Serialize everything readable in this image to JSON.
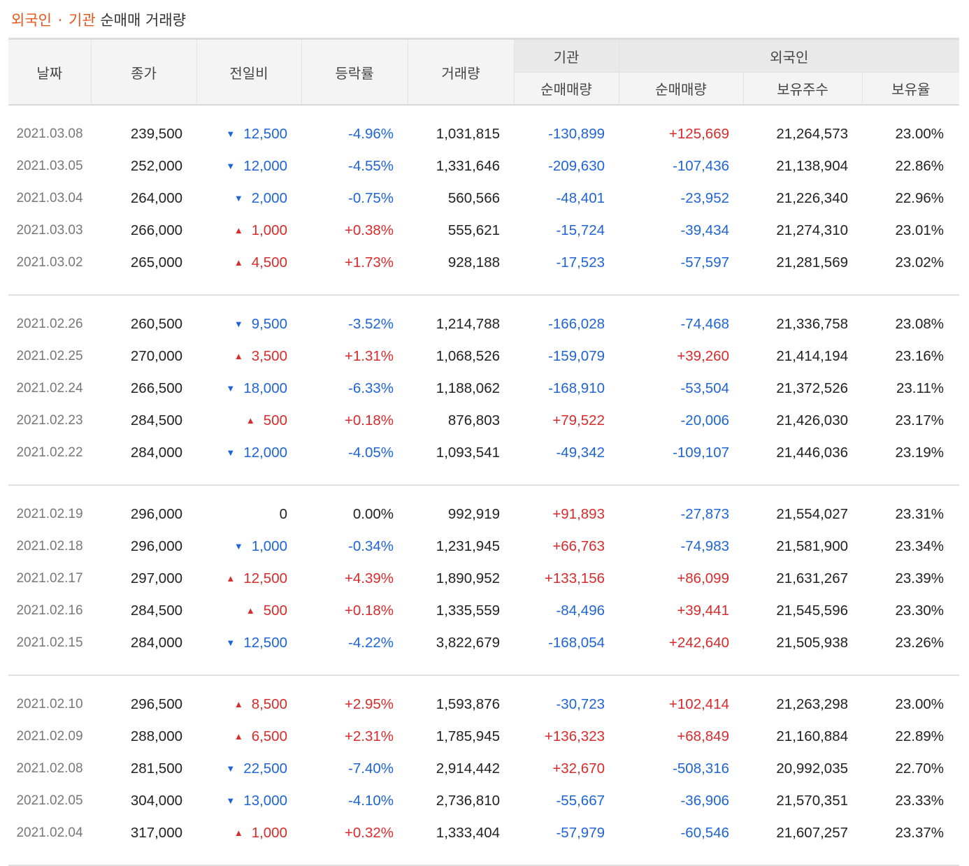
{
  "title": {
    "part1": "외국인",
    "sep": "·",
    "part2": "기관",
    "part3": "순매매 거래량"
  },
  "colors": {
    "up": "#d92b2b",
    "down": "#1f64d6",
    "accent": "#e8561b"
  },
  "headers": {
    "date": "날짜",
    "close": "종가",
    "change": "전일비",
    "rate": "등락률",
    "volume": "거래량",
    "institution": "기관",
    "foreign": "외국인",
    "inst_net": "순매매량",
    "foreign_net": "순매매량",
    "foreign_hold": "보유주수",
    "foreign_ratio": "보유율"
  },
  "groups": [
    {
      "rows": [
        {
          "date": "2021.03.08",
          "close": "239,500",
          "dir": "down",
          "change": "12,500",
          "rate": "-4.96%",
          "volume": "1,031,815",
          "inst": "-130,899",
          "fnet": "+125,669",
          "fhold": "21,264,573",
          "fratio": "23.00%"
        },
        {
          "date": "2021.03.05",
          "close": "252,000",
          "dir": "down",
          "change": "12,000",
          "rate": "-4.55%",
          "volume": "1,331,646",
          "inst": "-209,630",
          "fnet": "-107,436",
          "fhold": "21,138,904",
          "fratio": "22.86%"
        },
        {
          "date": "2021.03.04",
          "close": "264,000",
          "dir": "down",
          "change": "2,000",
          "rate": "-0.75%",
          "volume": "560,566",
          "inst": "-48,401",
          "fnet": "-23,952",
          "fhold": "21,226,340",
          "fratio": "22.96%"
        },
        {
          "date": "2021.03.03",
          "close": "266,000",
          "dir": "up",
          "change": "1,000",
          "rate": "+0.38%",
          "volume": "555,621",
          "inst": "-15,724",
          "fnet": "-39,434",
          "fhold": "21,274,310",
          "fratio": "23.01%"
        },
        {
          "date": "2021.03.02",
          "close": "265,000",
          "dir": "up",
          "change": "4,500",
          "rate": "+1.73%",
          "volume": "928,188",
          "inst": "-17,523",
          "fnet": "-57,597",
          "fhold": "21,281,569",
          "fratio": "23.02%"
        }
      ]
    },
    {
      "rows": [
        {
          "date": "2021.02.26",
          "close": "260,500",
          "dir": "down",
          "change": "9,500",
          "rate": "-3.52%",
          "volume": "1,214,788",
          "inst": "-166,028",
          "fnet": "-74,468",
          "fhold": "21,336,758",
          "fratio": "23.08%"
        },
        {
          "date": "2021.02.25",
          "close": "270,000",
          "dir": "up",
          "change": "3,500",
          "rate": "+1.31%",
          "volume": "1,068,526",
          "inst": "-159,079",
          "fnet": "+39,260",
          "fhold": "21,414,194",
          "fratio": "23.16%"
        },
        {
          "date": "2021.02.24",
          "close": "266,500",
          "dir": "down",
          "change": "18,000",
          "rate": "-6.33%",
          "volume": "1,188,062",
          "inst": "-168,910",
          "fnet": "-53,504",
          "fhold": "21,372,526",
          "fratio": "23.11%"
        },
        {
          "date": "2021.02.23",
          "close": "284,500",
          "dir": "up",
          "change": "500",
          "rate": "+0.18%",
          "volume": "876,803",
          "inst": "+79,522",
          "fnet": "-20,006",
          "fhold": "21,426,030",
          "fratio": "23.17%"
        },
        {
          "date": "2021.02.22",
          "close": "284,000",
          "dir": "down",
          "change": "12,000",
          "rate": "-4.05%",
          "volume": "1,093,541",
          "inst": "-49,342",
          "fnet": "-109,107",
          "fhold": "21,446,036",
          "fratio": "23.19%"
        }
      ]
    },
    {
      "rows": [
        {
          "date": "2021.02.19",
          "close": "296,000",
          "dir": "flat",
          "change": "0",
          "rate": "0.00%",
          "volume": "992,919",
          "inst": "+91,893",
          "fnet": "-27,873",
          "fhold": "21,554,027",
          "fratio": "23.31%"
        },
        {
          "date": "2021.02.18",
          "close": "296,000",
          "dir": "down",
          "change": "1,000",
          "rate": "-0.34%",
          "volume": "1,231,945",
          "inst": "+66,763",
          "fnet": "-74,983",
          "fhold": "21,581,900",
          "fratio": "23.34%"
        },
        {
          "date": "2021.02.17",
          "close": "297,000",
          "dir": "up",
          "change": "12,500",
          "rate": "+4.39%",
          "volume": "1,890,952",
          "inst": "+133,156",
          "fnet": "+86,099",
          "fhold": "21,631,267",
          "fratio": "23.39%"
        },
        {
          "date": "2021.02.16",
          "close": "284,500",
          "dir": "up",
          "change": "500",
          "rate": "+0.18%",
          "volume": "1,335,559",
          "inst": "-84,496",
          "fnet": "+39,441",
          "fhold": "21,545,596",
          "fratio": "23.30%"
        },
        {
          "date": "2021.02.15",
          "close": "284,000",
          "dir": "down",
          "change": "12,500",
          "rate": "-4.22%",
          "volume": "3,822,679",
          "inst": "-168,054",
          "fnet": "+242,640",
          "fhold": "21,505,938",
          "fratio": "23.26%"
        }
      ]
    },
    {
      "rows": [
        {
          "date": "2021.02.10",
          "close": "296,500",
          "dir": "up",
          "change": "8,500",
          "rate": "+2.95%",
          "volume": "1,593,876",
          "inst": "-30,723",
          "fnet": "+102,414",
          "fhold": "21,263,298",
          "fratio": "23.00%"
        },
        {
          "date": "2021.02.09",
          "close": "288,000",
          "dir": "up",
          "change": "6,500",
          "rate": "+2.31%",
          "volume": "1,785,945",
          "inst": "+136,323",
          "fnet": "+68,849",
          "fhold": "21,160,884",
          "fratio": "22.89%"
        },
        {
          "date": "2021.02.08",
          "close": "281,500",
          "dir": "down",
          "change": "22,500",
          "rate": "-7.40%",
          "volume": "2,914,442",
          "inst": "+32,670",
          "fnet": "-508,316",
          "fhold": "20,992,035",
          "fratio": "22.70%"
        },
        {
          "date": "2021.02.05",
          "close": "304,000",
          "dir": "down",
          "change": "13,000",
          "rate": "-4.10%",
          "volume": "2,736,810",
          "inst": "-55,667",
          "fnet": "-36,906",
          "fhold": "21,570,351",
          "fratio": "23.33%"
        },
        {
          "date": "2021.02.04",
          "close": "317,000",
          "dir": "up",
          "change": "1,000",
          "rate": "+0.32%",
          "volume": "1,333,404",
          "inst": "-57,979",
          "fnet": "-60,546",
          "fhold": "21,607,257",
          "fratio": "23.37%"
        }
      ]
    }
  ]
}
